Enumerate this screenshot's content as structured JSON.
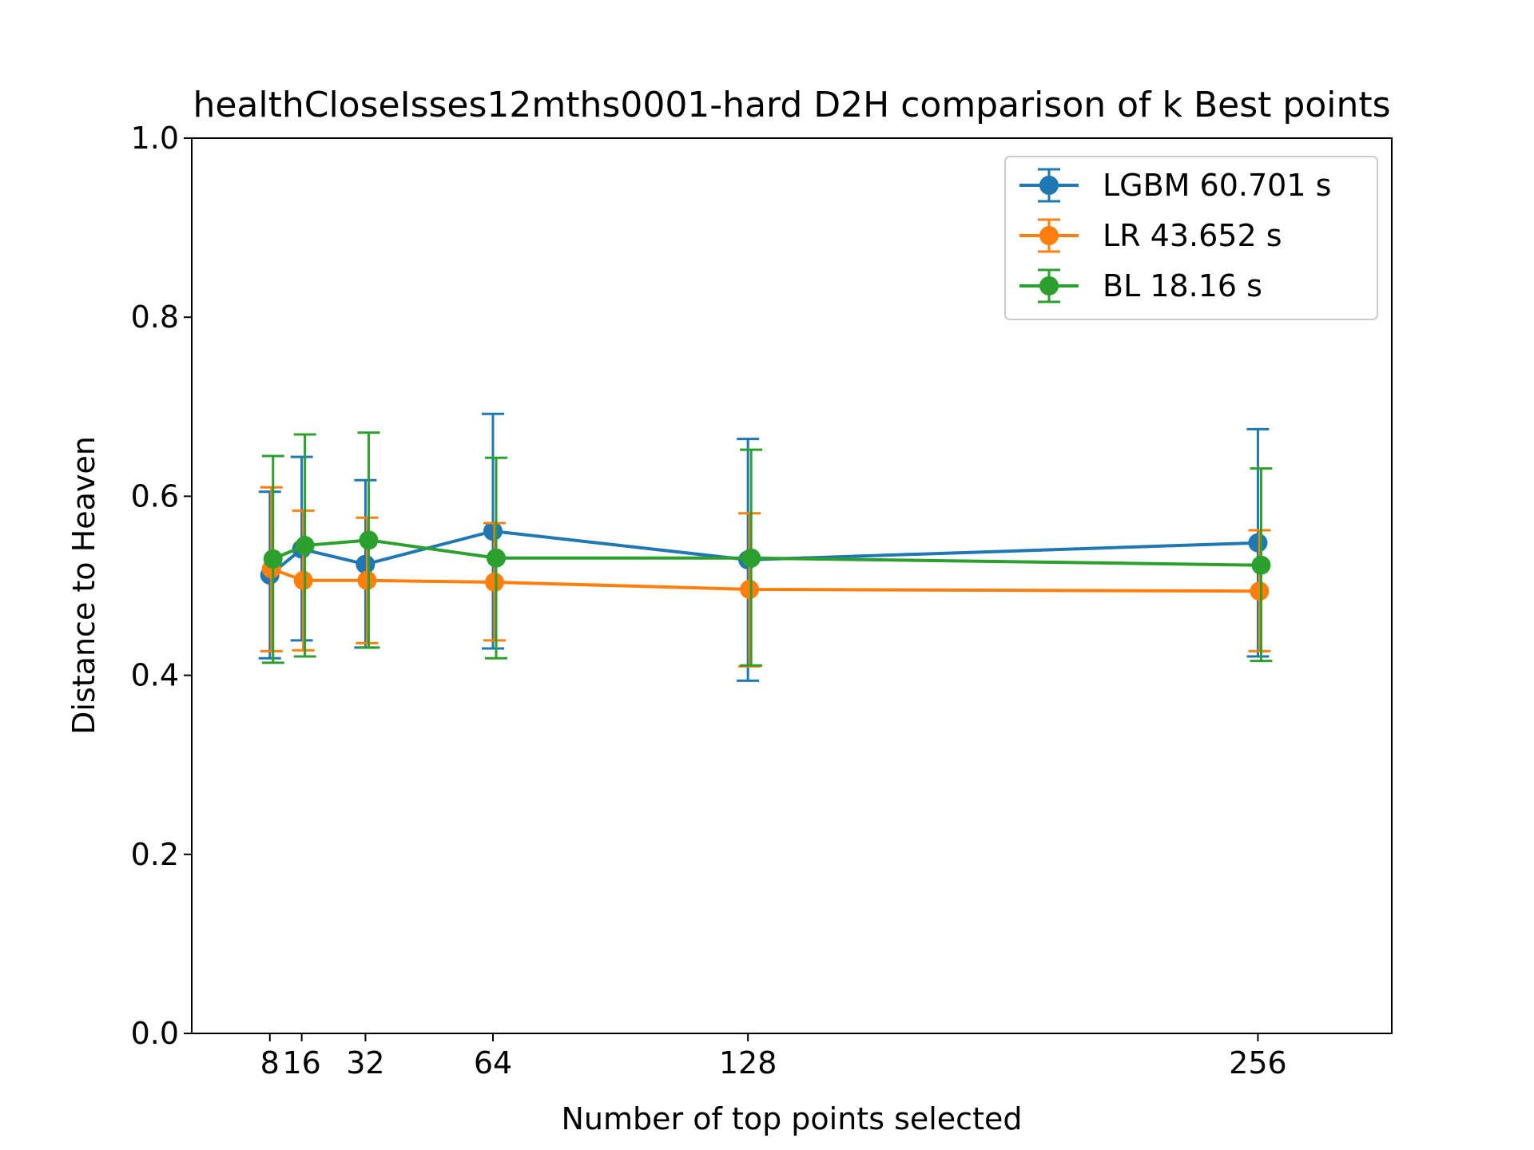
{
  "chart_data": {
    "type": "line",
    "title": "healthCloseIsses12mths0001-hard D2H comparison of k Best points",
    "xlabel": "Number of top points selected",
    "ylabel": "Distance to Heaven",
    "xlim": [
      -11.6,
      289.6
    ],
    "ylim": [
      0.0,
      1.0
    ],
    "xticks": [
      8,
      16,
      32,
      64,
      128,
      256
    ],
    "xtick_labels": [
      "8",
      "16",
      "32",
      "64",
      "128",
      "256"
    ],
    "yticks": [
      0.0,
      0.2,
      0.4,
      0.6,
      0.8,
      1.0
    ],
    "ytick_labels": [
      "0.0",
      "0.2",
      "0.4",
      "0.6",
      "0.8",
      "1.0"
    ],
    "grid": false,
    "legend_position": "top-right",
    "error_bars": true,
    "series": [
      {
        "name": "LGBM 60.701 s",
        "color": "#1f77b4",
        "x": [
          8,
          16,
          32,
          64,
          128,
          256
        ],
        "y": [
          0.512,
          0.541,
          0.524,
          0.561,
          0.529,
          0.548
        ],
        "yerr_low": [
          0.419,
          0.439,
          0.431,
          0.43,
          0.394,
          0.421
        ],
        "yerr_high": [
          0.605,
          0.644,
          0.618,
          0.692,
          0.664,
          0.675
        ]
      },
      {
        "name": "LR 43.652 s",
        "color": "#ff7f0e",
        "x": [
          8,
          16,
          32,
          64,
          128,
          256
        ],
        "y": [
          0.519,
          0.506,
          0.506,
          0.504,
          0.496,
          0.494
        ],
        "yerr_low": [
          0.427,
          0.428,
          0.436,
          0.439,
          0.41,
          0.427
        ],
        "yerr_high": [
          0.61,
          0.584,
          0.576,
          0.57,
          0.581,
          0.562
        ]
      },
      {
        "name": "BL 18.16 s",
        "color": "#2ca02c",
        "x": [
          8,
          16,
          32,
          64,
          128,
          256
        ],
        "y": [
          0.53,
          0.545,
          0.551,
          0.531,
          0.531,
          0.523
        ],
        "yerr_low": [
          0.414,
          0.421,
          0.431,
          0.419,
          0.411,
          0.416
        ],
        "yerr_high": [
          0.645,
          0.669,
          0.671,
          0.643,
          0.652,
          0.631
        ]
      }
    ]
  }
}
